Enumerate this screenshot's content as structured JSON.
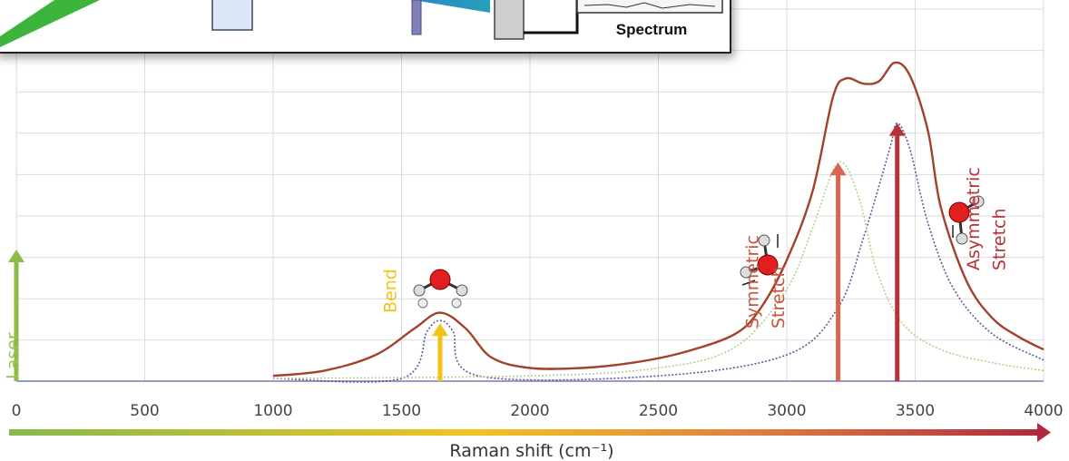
{
  "inset": {
    "caption": "Spectrum"
  },
  "chart_data": {
    "type": "line",
    "xlabel": "Raman shift (cm⁻¹)",
    "xlim": [
      0,
      4000
    ],
    "x_ticks": [
      "0",
      "500",
      "1000",
      "1500",
      "2000",
      "2500",
      "3000",
      "3500",
      "4000"
    ],
    "grid": true,
    "series": [
      {
        "name": "",
        "color": "#a3412a",
        "points": [
          [
            1000,
            0.02
          ],
          [
            1200,
            0.04
          ],
          [
            1400,
            0.1
          ],
          [
            1550,
            0.2
          ],
          [
            1650,
            0.26
          ],
          [
            1750,
            0.2
          ],
          [
            1850,
            0.09
          ],
          [
            2000,
            0.05
          ],
          [
            2200,
            0.05
          ],
          [
            2400,
            0.07
          ],
          [
            2600,
            0.11
          ],
          [
            2800,
            0.18
          ],
          [
            2900,
            0.28
          ],
          [
            3000,
            0.46
          ],
          [
            3100,
            0.72
          ],
          [
            3180,
            1.08
          ],
          [
            3230,
            1.15
          ],
          [
            3300,
            1.13
          ],
          [
            3360,
            1.14
          ],
          [
            3420,
            1.21
          ],
          [
            3480,
            1.16
          ],
          [
            3550,
            0.95
          ],
          [
            3600,
            0.66
          ],
          [
            3700,
            0.38
          ],
          [
            3800,
            0.24
          ],
          [
            3900,
            0.17
          ],
          [
            4000,
            0.12
          ]
        ]
      },
      {
        "name": "",
        "color": "#b7cf8a",
        "points": [
          [
            1000,
            0.01
          ],
          [
            2000,
            0.02
          ],
          [
            2500,
            0.05
          ],
          [
            2800,
            0.13
          ],
          [
            3000,
            0.35
          ],
          [
            3100,
            0.58
          ],
          [
            3200,
            0.83
          ],
          [
            3280,
            0.7
          ],
          [
            3350,
            0.42
          ],
          [
            3450,
            0.22
          ],
          [
            3600,
            0.12
          ],
          [
            3800,
            0.07
          ],
          [
            4000,
            0.04
          ]
        ]
      },
      {
        "name": "",
        "color": "#5a5a9a",
        "points": [
          [
            1000,
            0.01
          ],
          [
            1500,
            0.01
          ],
          [
            1600,
            0.19
          ],
          [
            1650,
            0.23
          ],
          [
            1700,
            0.19
          ],
          [
            1800,
            0.02
          ],
          [
            2500,
            0.02
          ],
          [
            3000,
            0.1
          ],
          [
            3200,
            0.28
          ],
          [
            3300,
            0.55
          ],
          [
            3400,
            0.88
          ],
          [
            3430,
            0.98
          ],
          [
            3480,
            0.88
          ],
          [
            3550,
            0.6
          ],
          [
            3650,
            0.35
          ],
          [
            3800,
            0.18
          ],
          [
            4000,
            0.08
          ]
        ]
      }
    ],
    "arrows": [
      {
        "x": 0,
        "height": 0.5,
        "color": "#8fba4a"
      },
      {
        "x": 1650,
        "height": 0.22,
        "color": "#f2c217"
      },
      {
        "x": 3200,
        "height": 0.83,
        "color": "#d8654e"
      },
      {
        "x": 3430,
        "height": 0.98,
        "color": "#b8323a"
      }
    ],
    "annotations": [
      {
        "text": "Laser",
        "x": 80,
        "color": "#9bc25a"
      },
      {
        "text": "Bend",
        "x": 1550,
        "color": "#f2c217"
      },
      {
        "text": "Symmetric",
        "x": 2960,
        "color": "#c8553d"
      },
      {
        "text": "Stretch",
        "x": 3060,
        "color": "#c8553d"
      },
      {
        "text": "Asymmetric",
        "x": 3820,
        "color": "#b8323a"
      },
      {
        "text": "Stretch",
        "x": 3920,
        "color": "#b8323a"
      }
    ]
  }
}
